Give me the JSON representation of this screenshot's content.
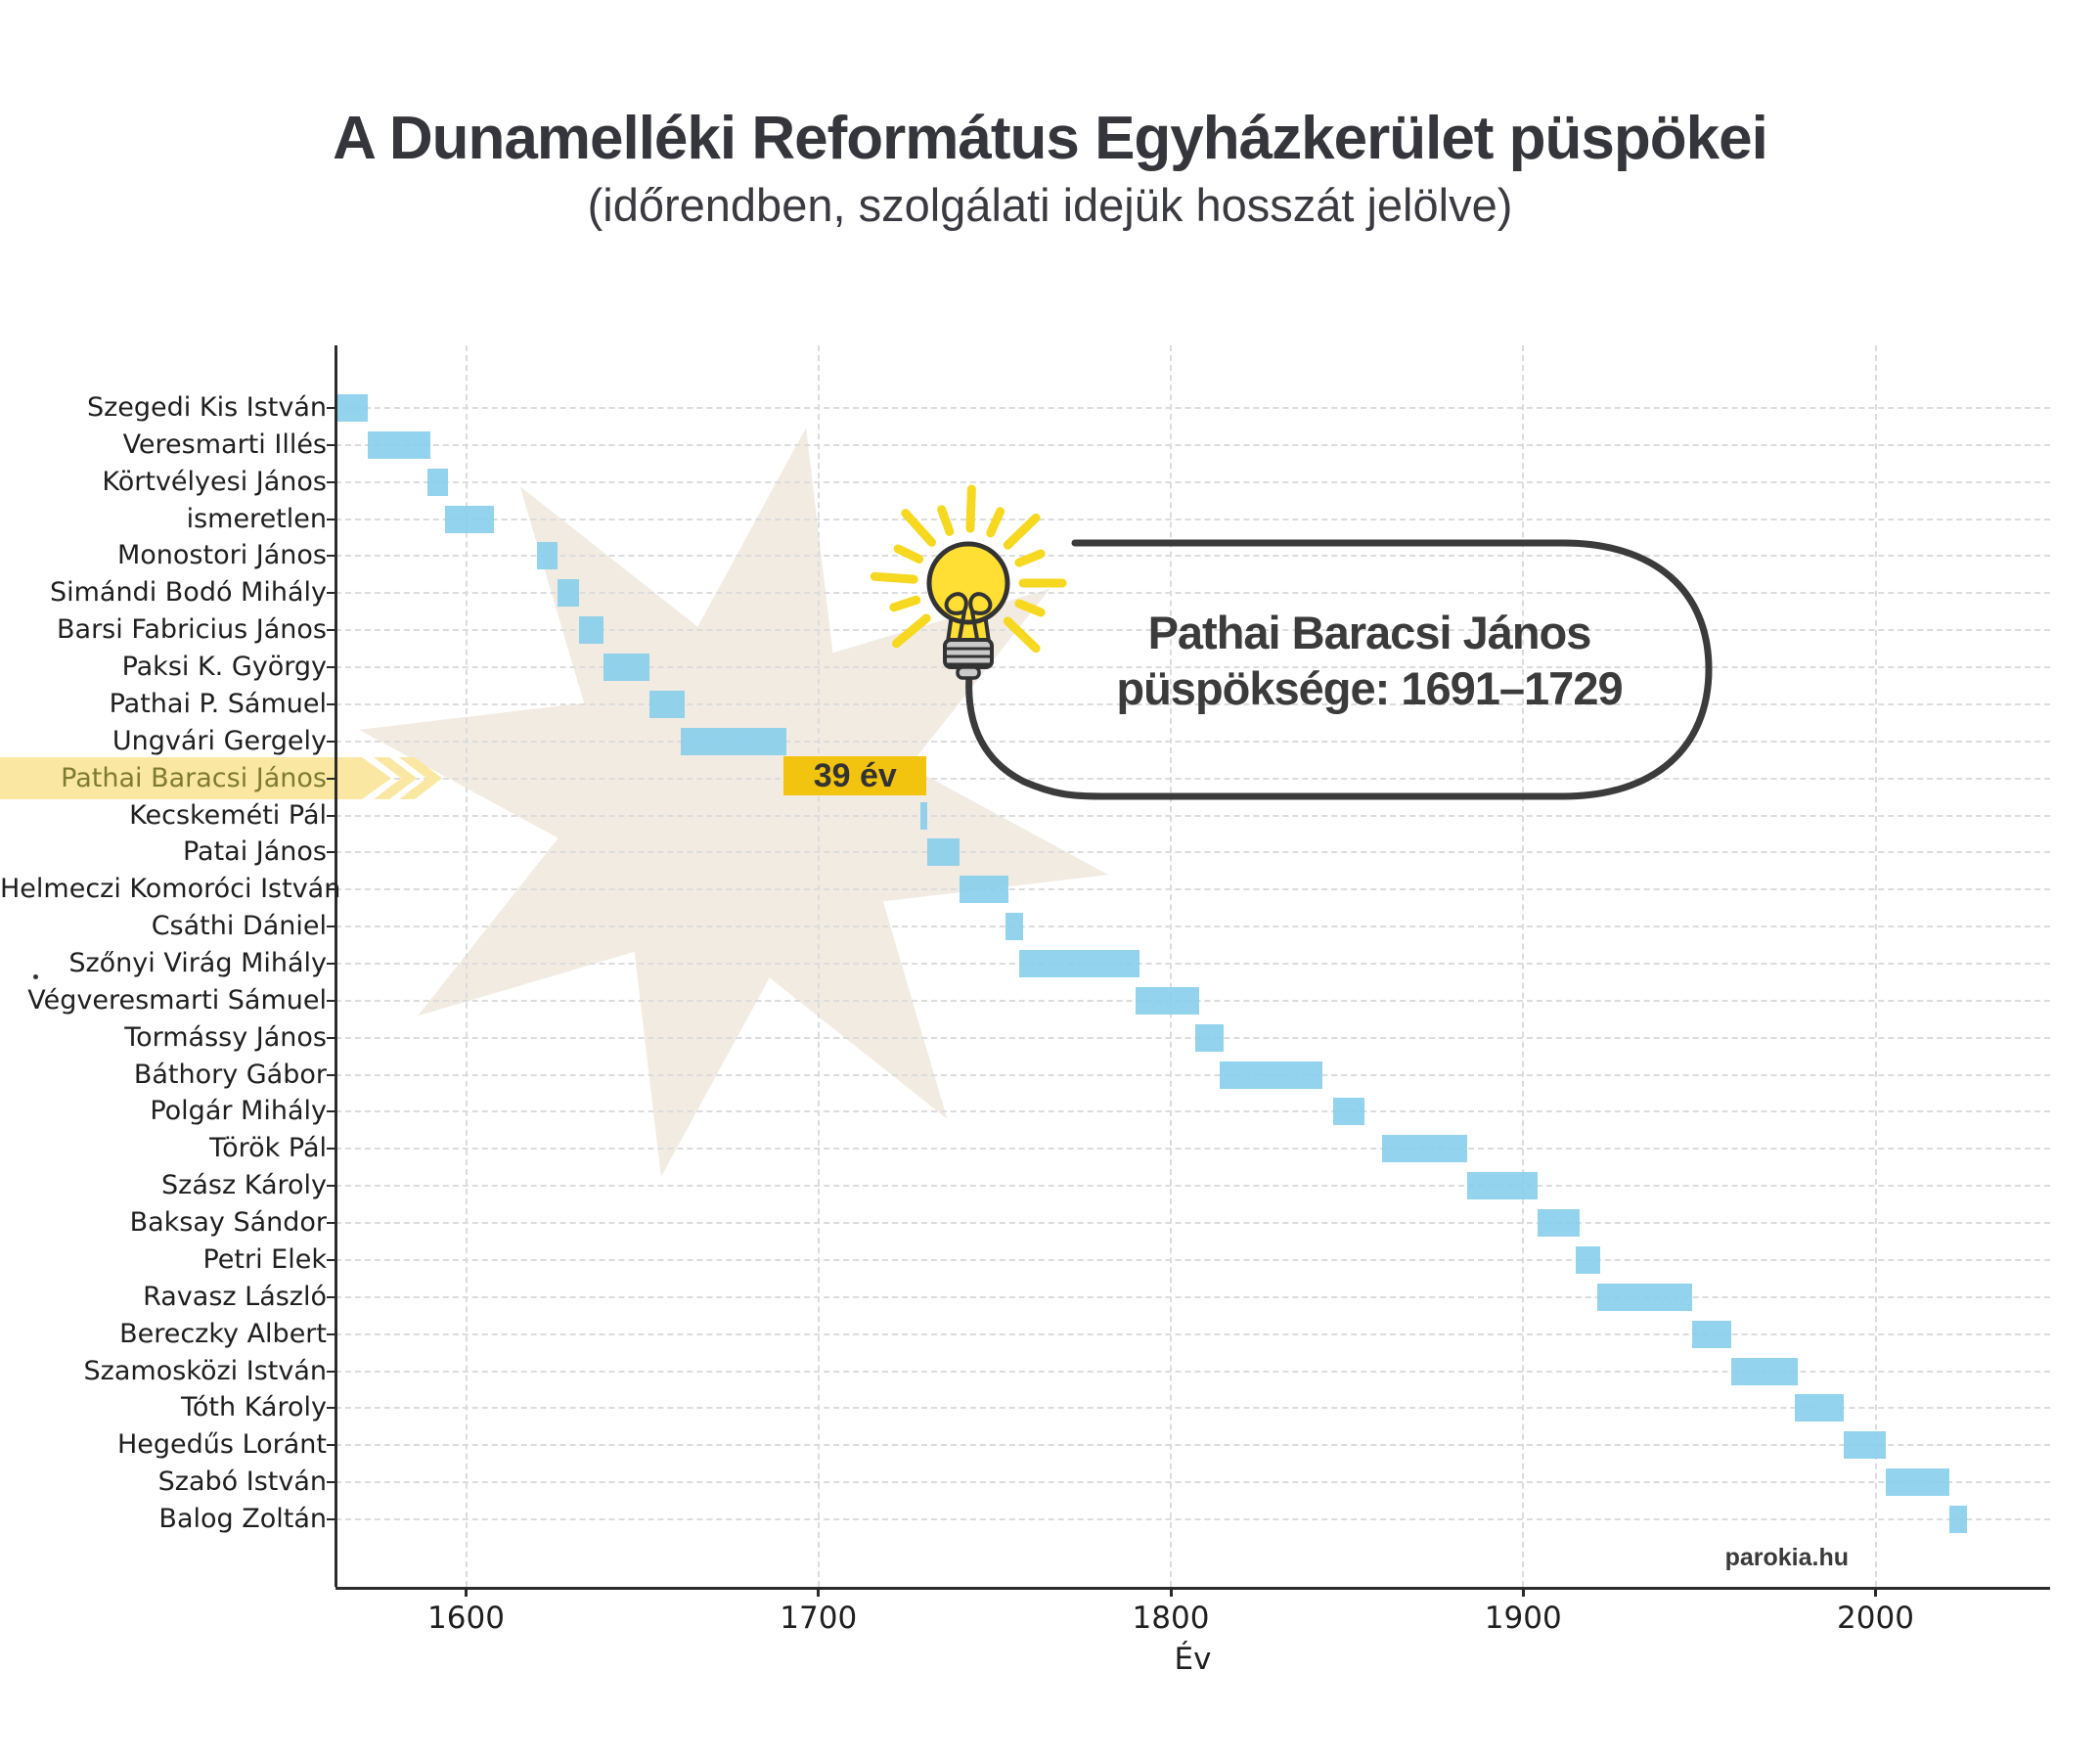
{
  "title": "A Dunamelléki Református Egyházkerület püspökei",
  "subtitle": "(időrendben, szolgálati idejük hosszát jelölve)",
  "watermark": "parokia.hu",
  "callout": {
    "line1": "Pathai Baracsi János",
    "line2": "püspöksége: 1691–1729"
  },
  "highlight": {
    "bishop": "Pathai Baracsi János",
    "duration_label": "39 év",
    "start": 1691,
    "end": 1729
  },
  "colors": {
    "bar": "#87CEEB",
    "highlight_band": "#FAE8A2",
    "highlight_text": "#7E7A33",
    "badge_gold": "#F2C40F",
    "callout_ink": "#3B3B3B",
    "bulb_yellow": "#FFDF33",
    "ray_yellow": "#F6D821",
    "star_beige": "#F2EBE1",
    "title_ink": "#35353C"
  },
  "chart_data": {
    "type": "bar",
    "orientation": "horizontal-timeline",
    "title": "A Dunamelléki Református Egyházkerület püspökei",
    "subtitle": "(időrendben, szolgálati idejük hosszát jelölve)",
    "xlabel": "Év",
    "x_ticks": [
      1600,
      1700,
      1800,
      1900,
      2000
    ],
    "xlim": [
      1563,
      2049
    ],
    "grid": true,
    "legend": false,
    "bar_color": "#87CEEB",
    "bars": [
      {
        "name": "Szegedi Kis István",
        "start": 1563,
        "end": 1572
      },
      {
        "name": "Veresmarti Illés",
        "start": 1572,
        "end": 1590
      },
      {
        "name": "Körtvélyesi János",
        "start": 1589,
        "end": 1595
      },
      {
        "name": "ismeretlen",
        "start": 1594,
        "end": 1608
      },
      {
        "name": "Monostori János",
        "start": 1620,
        "end": 1626
      },
      {
        "name": "Simándi Bodó Mihály",
        "start": 1626,
        "end": 1632
      },
      {
        "name": "Barsi Fabricius János",
        "start": 1632,
        "end": 1639
      },
      {
        "name": "Paksi K. György",
        "start": 1639,
        "end": 1652
      },
      {
        "name": "Pathai P. Sámuel",
        "start": 1652,
        "end": 1662
      },
      {
        "name": "Ungvári Gergely",
        "start": 1661,
        "end": 1691
      },
      {
        "name": "Pathai Baracsi János",
        "start": 1691,
        "end": 1729
      },
      {
        "name": "Kecskeméti Pál",
        "start": 1729,
        "end": 1731
      },
      {
        "name": "Patai János",
        "start": 1731,
        "end": 1740
      },
      {
        "name": "Helmeczi Komoróci István",
        "start": 1740,
        "end": 1754
      },
      {
        "name": "Csáthi Dániel",
        "start": 1753,
        "end": 1758
      },
      {
        "name": "Szőnyi Virág Mihály",
        "start": 1757,
        "end": 1791
      },
      {
        "name": "Végveresmarti Sámuel",
        "start": 1790,
        "end": 1808
      },
      {
        "name": "Tormássy János",
        "start": 1807,
        "end": 1815
      },
      {
        "name": "Báthory Gábor",
        "start": 1814,
        "end": 1843
      },
      {
        "name": "Polgár Mihály",
        "start": 1846,
        "end": 1855
      },
      {
        "name": "Török Pál",
        "start": 1860,
        "end": 1884
      },
      {
        "name": "Szász Károly",
        "start": 1884,
        "end": 1904
      },
      {
        "name": "Baksay Sándor",
        "start": 1904,
        "end": 1916
      },
      {
        "name": "Petri Elek",
        "start": 1915,
        "end": 1922
      },
      {
        "name": "Ravasz László",
        "start": 1921,
        "end": 1948
      },
      {
        "name": "Bereczky Albert",
        "start": 1948,
        "end": 1959
      },
      {
        "name": "Szamosközi István",
        "start": 1959,
        "end": 1978
      },
      {
        "name": "Tóth Károly",
        "start": 1977,
        "end": 1991
      },
      {
        "name": "Hegedűs Loránt",
        "start": 1991,
        "end": 2003
      },
      {
        "name": "Szabó István",
        "start": 2003,
        "end": 2021
      },
      {
        "name": "Balog Zoltán",
        "start": 2021,
        "end": 2026
      }
    ]
  }
}
